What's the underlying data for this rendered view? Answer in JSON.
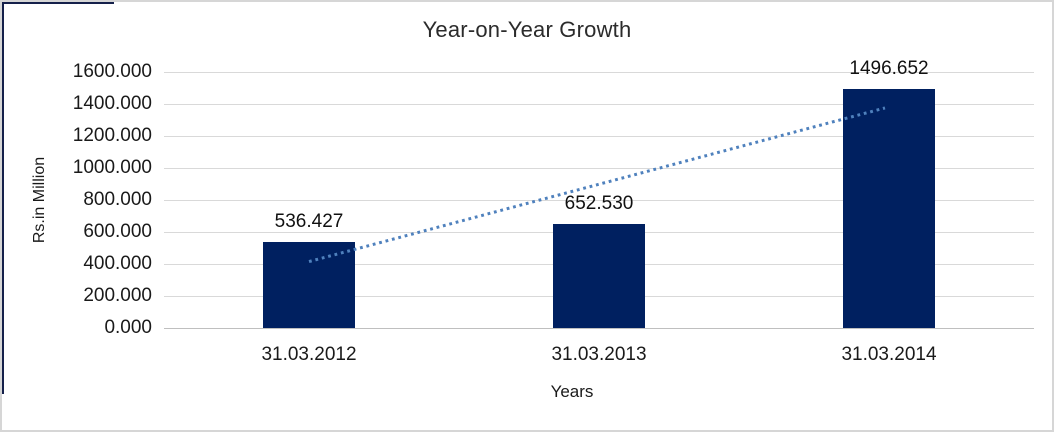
{
  "chart_data": {
    "type": "bar",
    "title": "Year-on-Year Growth",
    "categories": [
      "31.03.2012",
      "31.03.2013",
      "31.03.2014"
    ],
    "values": [
      536.427,
      652.53,
      1496.652
    ],
    "data_labels": [
      "536.427",
      "652.530",
      "1496.652"
    ],
    "xlabel": "Years",
    "ylabel": "Rs.in Million",
    "ylim": [
      0,
      1600
    ],
    "ytick_step": 200,
    "ytick_labels": [
      "1600.000",
      "1400.000",
      "1200.000",
      "1000.000",
      "800.000",
      "600.000",
      "400.000",
      "200.000",
      "0.000"
    ],
    "grid": true,
    "legend": "none",
    "bar_color": "#002060",
    "gridline_color": "#d9d9d9",
    "trendline": {
      "type": "linear",
      "style": "dotted",
      "color": "#4F81BD"
    }
  }
}
